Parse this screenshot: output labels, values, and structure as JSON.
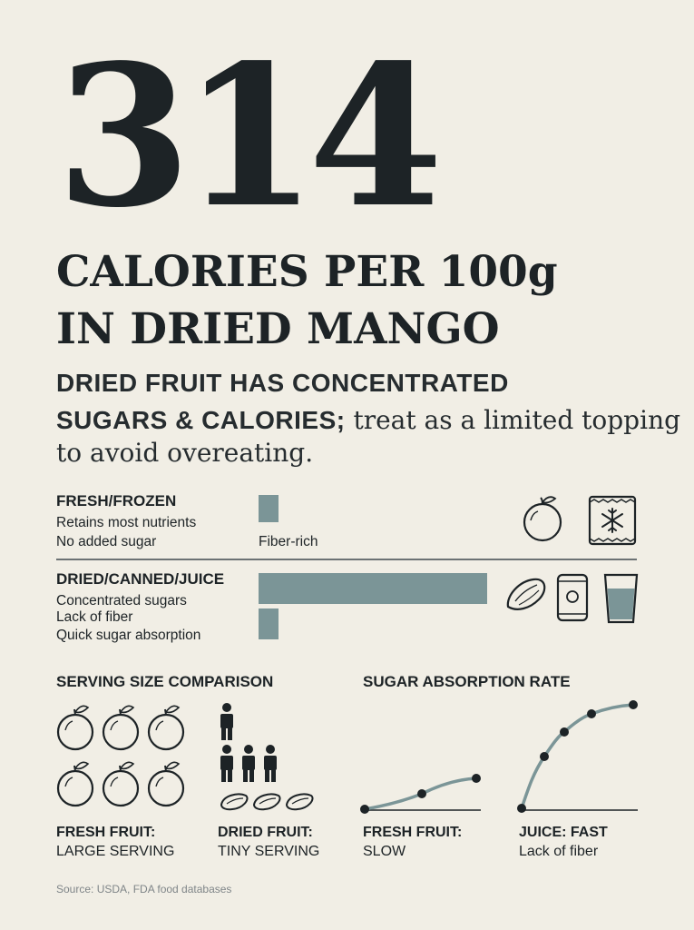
{
  "headline": {
    "number": "314",
    "line1": "CALORIES PER 100g",
    "line2": "IN DRIED MANGO"
  },
  "subtitle": {
    "bold_line1": "DRIED FRUIT HAS CONCENTRATED",
    "bold_line2": "SUGARS & CALORIES;",
    "rest_line2": " treat as a limited topping",
    "line3": "to avoid overeating."
  },
  "categories": [
    {
      "title": "FRESH/FROZEN",
      "details": [
        "Retains most nutrients",
        "No added sugar"
      ],
      "bar_label": "Fiber-rich",
      "icons": [
        "orange-icon",
        "frozen-bag-icon"
      ]
    },
    {
      "title": "DRIED/CANNED/JUICE",
      "details": [
        "Concentrated sugars",
        "Lack of fiber",
        "Quick sugar absorption"
      ],
      "icons": [
        "dried-fruit-icon",
        "can-icon",
        "juice-glass-icon"
      ]
    }
  ],
  "serving": {
    "title": "SERVING SIZE COMPARISON",
    "fresh_title": "FRESH FRUIT:",
    "fresh_sub": "LARGE SERVING",
    "dried_title": "DRIED FRUIT:",
    "dried_sub": "TINY SERVING",
    "fresh_fruit_count": 6,
    "person_count": 4,
    "dried_piece_count": 3
  },
  "absorption": {
    "title": "SUGAR ABSORPTION RATE",
    "fresh_title": "FRESH FRUIT:",
    "fresh_sub": "SLOW",
    "juice_title": "JUICE: FAST",
    "juice_sub": "Lack of fiber"
  },
  "source": "Source: USDA, FDA food databases",
  "colors": {
    "background": "#f1eee5",
    "text": "#1d2326",
    "bar": "#7b9597"
  }
}
